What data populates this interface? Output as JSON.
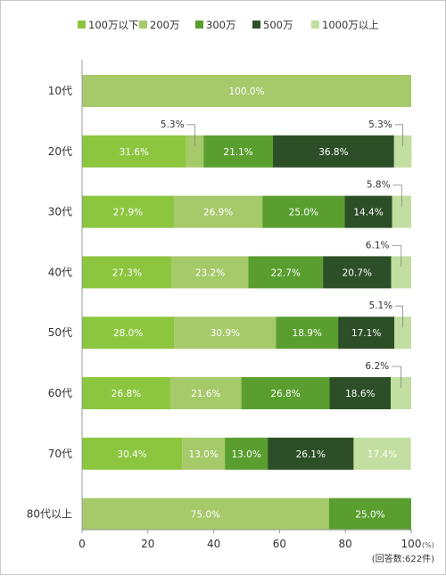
{
  "chart_data": {
    "type": "bar",
    "orientation": "horizontal",
    "stacked": true,
    "categories": [
      "10代",
      "20代",
      "30代",
      "40代",
      "50代",
      "60代",
      "70代",
      "80代以上"
    ],
    "series": [
      {
        "name": "100万以下",
        "color": "#8cc63f",
        "values": [
          0,
          31.6,
          27.9,
          27.3,
          28.0,
          26.8,
          30.4,
          0
        ]
      },
      {
        "name": "200万",
        "color": "#a6c96a",
        "values": [
          100.0,
          5.3,
          26.9,
          23.2,
          30.9,
          21.6,
          13.0,
          75.0
        ]
      },
      {
        "name": "300万",
        "color": "#5a9e2f",
        "values": [
          0,
          21.1,
          25.0,
          22.7,
          18.9,
          26.8,
          13.0,
          25.0
        ]
      },
      {
        "name": "500万",
        "color": "#2d4f27",
        "values": [
          0,
          36.8,
          14.4,
          20.7,
          17.1,
          18.6,
          26.1,
          0
        ]
      },
      {
        "name": "1000万以上",
        "color": "#c2dea0",
        "values": [
          0,
          5.3,
          5.8,
          6.1,
          5.1,
          6.2,
          17.4,
          0
        ]
      }
    ],
    "xlim": [
      0,
      100
    ],
    "xticks": [
      0,
      20,
      40,
      60,
      80,
      100
    ],
    "x_unit": "(%)",
    "note": "(回答数:622件)",
    "legend": "top",
    "grid": false
  }
}
